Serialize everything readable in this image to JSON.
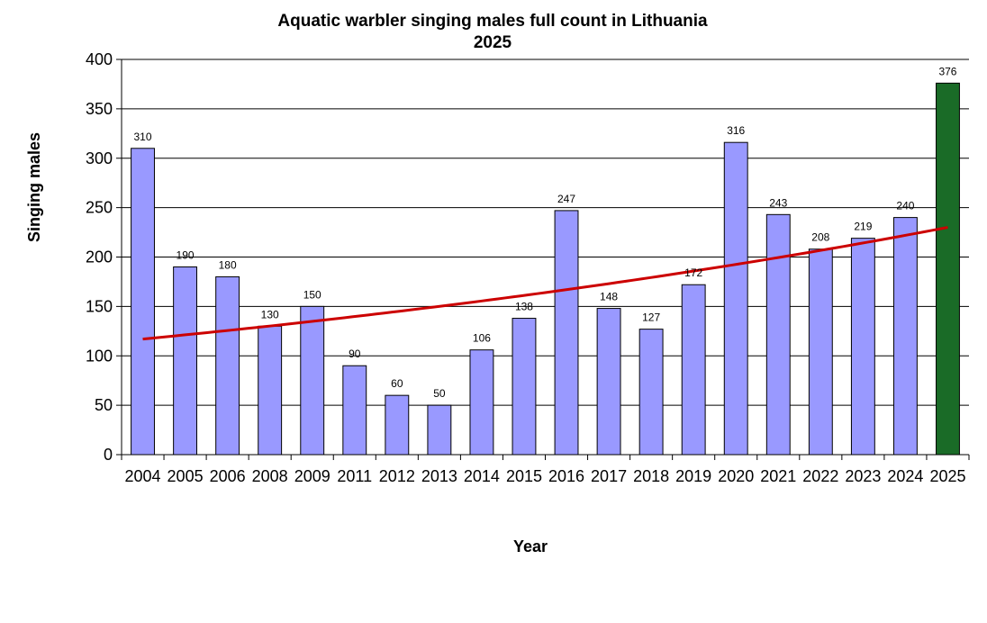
{
  "chart_data": {
    "type": "bar",
    "title": "Aquatic warbler singing males full count in Lithuania",
    "subtitle": "2025",
    "xlabel": "Year",
    "ylabel": "Singing males",
    "ylim": [
      0,
      400
    ],
    "yticks": [
      0,
      50,
      100,
      150,
      200,
      250,
      300,
      350,
      400
    ],
    "grid": true,
    "categories": [
      "2004",
      "2005",
      "2006",
      "2008",
      "2009",
      "2011",
      "2012",
      "2013",
      "2014",
      "2015",
      "2016",
      "2017",
      "2018",
      "2019",
      "2020",
      "2021",
      "2022",
      "2023",
      "2024",
      "2025"
    ],
    "series": [
      {
        "values": [
          310,
          190,
          180,
          130,
          150,
          90,
          60,
          50,
          106,
          138,
          247,
          148,
          127,
          172,
          316,
          243,
          208,
          219,
          240,
          376
        ],
        "color": "#9999ff",
        "highlight_color": "#1a6b27",
        "highlight_category": "2025"
      }
    ],
    "trendline": {
      "type": "exponential",
      "color": "#cc0000",
      "start_value": 117,
      "end_value": 230
    }
  }
}
